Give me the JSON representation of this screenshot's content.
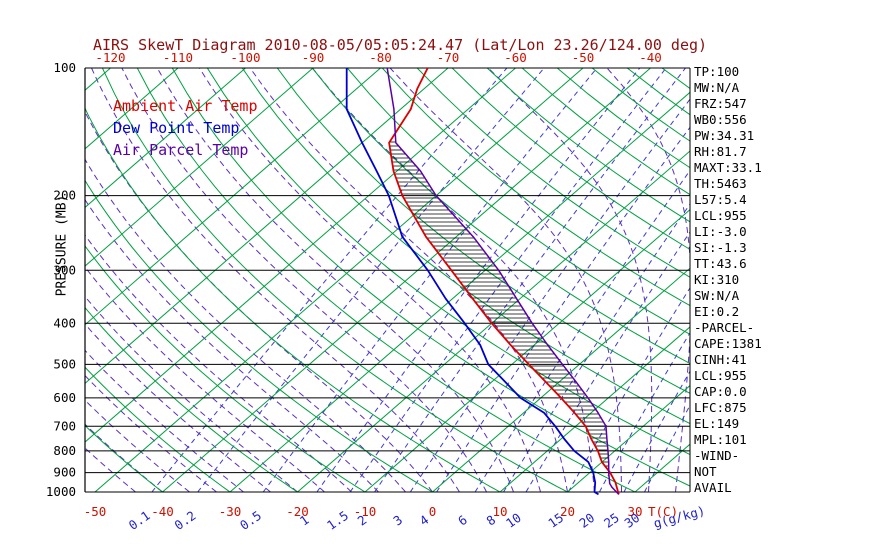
{
  "title": "AIRS SkewT Diagram 2010-08-05/05:05:24.47 (Lat/Lon 23.26/124.00 deg)",
  "colors": {
    "title_red": "#8b0f0f",
    "temp_axis_red": "#cc1100",
    "mixing_blue": "#2222cc",
    "isotherm_green": "#00a040",
    "dry_adiabat_green": "#00a040",
    "moist_adiabat_dashed": "#5b2fc0",
    "mixing_ratio_dashed": "#3d3dcc",
    "ambient_red": "#dd0000",
    "dewpoint_blue": "#0000cc",
    "parcel_purple": "#5a00a8",
    "grid_black": "#000000"
  },
  "legend": [
    {
      "label": "Ambient Air Temp",
      "color": "#dd0000"
    },
    {
      "label": "Dew Point Temp",
      "color": "#0000cc"
    },
    {
      "label": "Air Parcel Temp",
      "color": "#5a00a8"
    }
  ],
  "axes": {
    "pressure_label": "PRESSURE (MB)",
    "pressure_ticks": [
      100,
      200,
      300,
      400,
      500,
      600,
      700,
      800,
      900,
      1000
    ],
    "top_temp_ticks": [
      -120,
      -110,
      -100,
      -90,
      -80,
      -70,
      -60,
      -50,
      -40
    ],
    "bottom_temp_ticks": [
      -50,
      -40,
      -30,
      -20,
      -10,
      0,
      10,
      20,
      30
    ],
    "bottom_temp_unit": "T(C)",
    "mixing_ratio_ticks": [
      0.1,
      0.2,
      0.5,
      1,
      1.5,
      2,
      3,
      4,
      6,
      8,
      10,
      15,
      20,
      25,
      30
    ],
    "mixing_ratio_unit": "g(g/kg)"
  },
  "stats_panel": {
    "lines": [
      "TP:100",
      "MW:N/A",
      "FRZ:547",
      "WB0:556",
      "PW:34.31",
      "RH:81.7",
      "MAXT:33.1",
      "TH:5463",
      "L57:5.4",
      "LCL:955",
      "LI:-3.0",
      "SI:-1.3",
      "TT:43.6",
      "KI:310",
      "SW:N/A",
      "EI:0.2",
      "-PARCEL-",
      "CAPE:1381",
      "CINH:41",
      "LCL:955",
      "CAP:0.0",
      "LFC:875",
      "EL:149",
      "MPL:101",
      "-WIND-",
      "NOT",
      "AVAIL"
    ]
  },
  "chart_data": {
    "type": "line",
    "title": "AIRS SkewT Diagram 2010-08-05/05:05:24.47 (Lat/Lon 23.26/124.00 deg)",
    "xlabel": "Temperature (C)",
    "ylabel": "PRESSURE (MB)",
    "pressure_range_mb": [
      100,
      1013
    ],
    "top_axis_temp_range_c": [
      -120,
      -40
    ],
    "bottom_axis_temp_range_c": [
      -50,
      30
    ],
    "grid": true,
    "legend_position": "upper-left",
    "series": [
      {
        "name": "Ambient Air Temp",
        "color": "#dd0000",
        "points": [
          [
            1013,
            28
          ],
          [
            1000,
            27.5
          ],
          [
            950,
            25.5
          ],
          [
            900,
            23
          ],
          [
            850,
            20
          ],
          [
            800,
            17.5
          ],
          [
            750,
            14.5
          ],
          [
            700,
            11.5
          ],
          [
            650,
            7.5
          ],
          [
            600,
            3
          ],
          [
            550,
            -2
          ],
          [
            500,
            -7.5
          ],
          [
            450,
            -13.5
          ],
          [
            400,
            -20
          ],
          [
            350,
            -27
          ],
          [
            300,
            -35
          ],
          [
            250,
            -44.5
          ],
          [
            200,
            -55
          ],
          [
            175,
            -60.5
          ],
          [
            150,
            -66
          ],
          [
            125,
            -68.5
          ],
          [
            112,
            -71
          ],
          [
            100,
            -73
          ]
        ]
      },
      {
        "name": "Dew Point Temp",
        "color": "#0000cc",
        "points": [
          [
            1013,
            25
          ],
          [
            1000,
            24
          ],
          [
            950,
            22.5
          ],
          [
            900,
            20.5
          ],
          [
            850,
            18
          ],
          [
            800,
            14
          ],
          [
            750,
            10.5
          ],
          [
            700,
            7
          ],
          [
            650,
            3
          ],
          [
            600,
            -3
          ],
          [
            550,
            -8
          ],
          [
            500,
            -13.5
          ],
          [
            450,
            -18
          ],
          [
            400,
            -24
          ],
          [
            350,
            -31
          ],
          [
            300,
            -38.5
          ],
          [
            250,
            -48
          ],
          [
            200,
            -57
          ],
          [
            175,
            -63
          ],
          [
            150,
            -70
          ],
          [
            125,
            -78
          ],
          [
            100,
            -85
          ]
        ]
      },
      {
        "name": "Air Parcel Temp",
        "color": "#5a00a8",
        "points": [
          [
            1013,
            28
          ],
          [
            975,
            25.8
          ],
          [
            955,
            24.8
          ],
          [
            900,
            22.8
          ],
          [
            850,
            21
          ],
          [
            800,
            19
          ],
          [
            750,
            16.8
          ],
          [
            700,
            14.5
          ],
          [
            650,
            11
          ],
          [
            600,
            7
          ],
          [
            550,
            2.5
          ],
          [
            500,
            -2.5
          ],
          [
            450,
            -8
          ],
          [
            400,
            -14
          ],
          [
            350,
            -20.5
          ],
          [
            300,
            -28
          ],
          [
            250,
            -37.5
          ],
          [
            200,
            -50
          ],
          [
            175,
            -56.5
          ],
          [
            150,
            -65
          ],
          [
            125,
            -71
          ],
          [
            100,
            -79
          ]
        ]
      }
    ],
    "cape_region": {
      "lfc_mb": 875,
      "el_mb": 149,
      "cape_j_kg": 1381,
      "cinh_j_kg": 41,
      "hatch": "horizontal"
    },
    "background": {
      "isotherms_c": {
        "min": -160,
        "max": 40,
        "step": 10
      },
      "dry_adiabat_start_temps_c": [
        -40,
        -30,
        -20,
        -10,
        0,
        10,
        20,
        30,
        40,
        50,
        60,
        70,
        80,
        90,
        100,
        110,
        120,
        130,
        140,
        150,
        160,
        170,
        180
      ],
      "moist_adiabat_start_temps_c": [
        -44,
        -40,
        -36,
        -32,
        -28,
        -24,
        -20,
        -16,
        -12,
        -8,
        -4,
        0,
        4,
        8,
        12,
        16,
        20,
        24,
        28,
        32,
        36
      ],
      "mixing_ratio_lines_g_kg": [
        0.1,
        0.2,
        0.5,
        1,
        1.5,
        2,
        3,
        4,
        6,
        8,
        10,
        15,
        20,
        25,
        30
      ]
    }
  }
}
